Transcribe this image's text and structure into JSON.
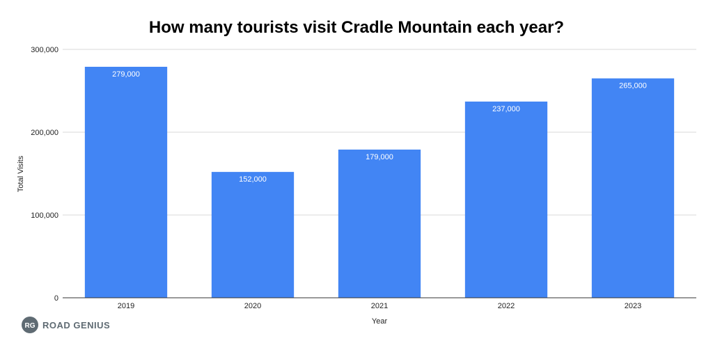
{
  "chart_data": {
    "type": "bar",
    "title": "How many tourists visit Cradle Mountain each year?",
    "xlabel": "Year",
    "ylabel": "Total Visits",
    "categories": [
      "2019",
      "2020",
      "2021",
      "2022",
      "2023"
    ],
    "values": [
      279000,
      152000,
      179000,
      237000,
      265000
    ],
    "data_labels": [
      "279,000",
      "152,000",
      "179,000",
      "237,000",
      "265,000"
    ],
    "ylim": [
      0,
      300000
    ],
    "y_ticks": [
      0,
      100000,
      200000,
      300000
    ],
    "y_tick_labels": [
      "0",
      "100,000",
      "200,000",
      "300,000"
    ],
    "grid": true,
    "legend": "none",
    "bar_color": "#4285F4"
  },
  "branding": {
    "logo_mark": "RG",
    "logo_text": "ROAD GENIUS",
    "logo_color": "#5f6b73"
  }
}
